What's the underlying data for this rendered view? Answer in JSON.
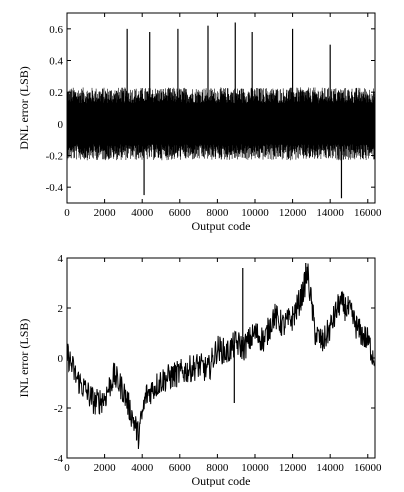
{
  "chart_data": [
    {
      "type": "line",
      "title": "",
      "xlabel": "Output code",
      "ylabel": "DNL error (LSB)",
      "xlim": [
        0,
        16384
      ],
      "ylim": [
        -0.5,
        0.7
      ],
      "x_ticks": [
        "0",
        "2000",
        "4000",
        "6000",
        "8000",
        "10000",
        "12000",
        "14000",
        "16000"
      ],
      "y_ticks": [
        "-0.4",
        "-0.2",
        "0",
        "0.2",
        "0.4",
        "0.6"
      ],
      "series": [
        {
          "noise_band": [
            -0.2,
            0.2
          ],
          "spikes": [
            {
              "x": 3200,
              "y": 0.6
            },
            {
              "x": 4400,
              "y": 0.58
            },
            {
              "x": 5900,
              "y": 0.6
            },
            {
              "x": 7500,
              "y": 0.62
            },
            {
              "x": 8950,
              "y": 0.64
            },
            {
              "x": 9850,
              "y": 0.58
            },
            {
              "x": 12000,
              "y": 0.6
            },
            {
              "x": 14000,
              "y": 0.5
            },
            {
              "x": 4100,
              "y": -0.45
            },
            {
              "x": 14600,
              "y": -0.47
            }
          ]
        }
      ]
    },
    {
      "type": "line",
      "title": "",
      "xlabel": "Output code",
      "ylabel": "INL error (LSB)",
      "xlim": [
        0,
        16384
      ],
      "ylim": [
        -4,
        4
      ],
      "x_ticks": [
        "0",
        "2000",
        "4000",
        "6000",
        "8000",
        "10000",
        "12000",
        "14000",
        "16000"
      ],
      "y_ticks": [
        "-4",
        "-2",
        "0",
        "2",
        "4"
      ],
      "series": [
        {
          "x": [
            0,
            500,
            1000,
            1500,
            2000,
            2500,
            3000,
            3500,
            3800,
            4200,
            5000,
            6000,
            7000,
            7500,
            8000,
            8500,
            9000,
            9400,
            10000,
            10500,
            11000,
            11500,
            12000,
            12500,
            12800,
            13200,
            13600,
            14000,
            14500,
            15000,
            15500,
            16000,
            16384
          ],
          "y": [
            0.2,
            -0.8,
            -1.3,
            -1.8,
            -1.6,
            -0.7,
            -1.3,
            -2.4,
            -3.1,
            -1.5,
            -0.9,
            -0.6,
            -0.3,
            -0.5,
            0.4,
            0.2,
            0.6,
            0.4,
            1.0,
            0.7,
            1.7,
            1.3,
            1.6,
            2.5,
            3.4,
            1.0,
            0.6,
            1.2,
            2.2,
            1.9,
            1.1,
            0.7,
            -0.1
          ],
          "spikes": [
            {
              "x": 9350,
              "y": 3.6
            },
            {
              "x": 8900,
              "y": -1.8
            },
            {
              "x": 12700,
              "y": 3.8
            },
            {
              "x": 3700,
              "y": -3.3
            }
          ]
        }
      ]
    }
  ]
}
